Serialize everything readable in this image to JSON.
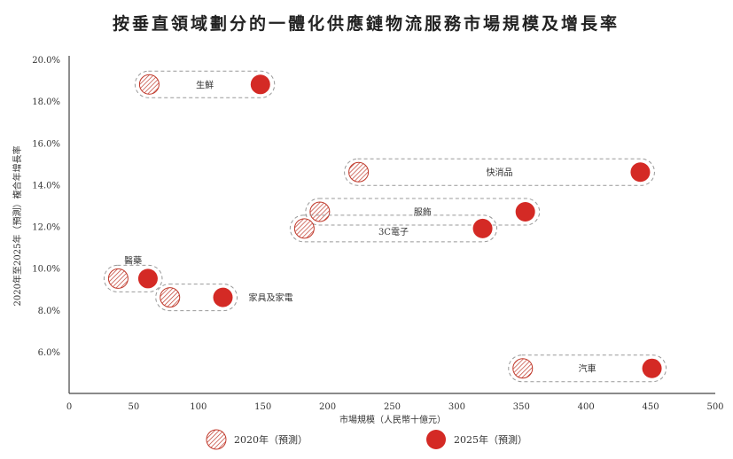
{
  "chart_data": {
    "type": "scatter",
    "title": "按垂直領域劃分的一體化供應鏈物流服務市場規模及增長率",
    "xlabel": "市場規模（人民幣十億元）",
    "ylabel": "2020年至2025年（預測）複合年增長率",
    "xlim": [
      0,
      500
    ],
    "ylim": [
      4,
      20
    ],
    "xticks": [
      "0",
      "50",
      "100",
      "150",
      "200",
      "250",
      "300",
      "350",
      "400",
      "450",
      "500"
    ],
    "yticks": [
      "6.0%",
      "8.0%",
      "10.0%",
      "12.0%",
      "14.0%",
      "16.0%",
      "18.0%",
      "20.0%"
    ],
    "grid": false,
    "legend_placement": "bottom",
    "series": [
      {
        "name": "2020年（預測）",
        "style": "hatched",
        "color": "#c0392b"
      },
      {
        "name": "2025年（預測）",
        "style": "filled",
        "color": "#d42a25"
      }
    ],
    "points": [
      {
        "label": "生鮮",
        "x2020": 62,
        "x2025": 148,
        "cagr": 18.8,
        "label_pos": "inside"
      },
      {
        "label": "快消品",
        "x2020": 224,
        "x2025": 442,
        "cagr": 14.6,
        "label_pos": "inside"
      },
      {
        "label": "服飾",
        "x2020": 194,
        "x2025": 353,
        "cagr": 12.7,
        "label_pos": "inside"
      },
      {
        "label": "3C電子",
        "x2020": 182,
        "x2025": 320,
        "cagr": 11.9,
        "label_pos": "inside-below"
      },
      {
        "label": "醫藥",
        "x2020": 38,
        "x2025": 61,
        "cagr": 9.5,
        "label_pos": "above"
      },
      {
        "label": "家具及家電",
        "x2020": 78,
        "x2025": 119,
        "cagr": 8.6,
        "label_pos": "right"
      },
      {
        "label": "汽車",
        "x2020": 351,
        "x2025": 451,
        "cagr": 5.2,
        "label_pos": "inside"
      }
    ]
  }
}
